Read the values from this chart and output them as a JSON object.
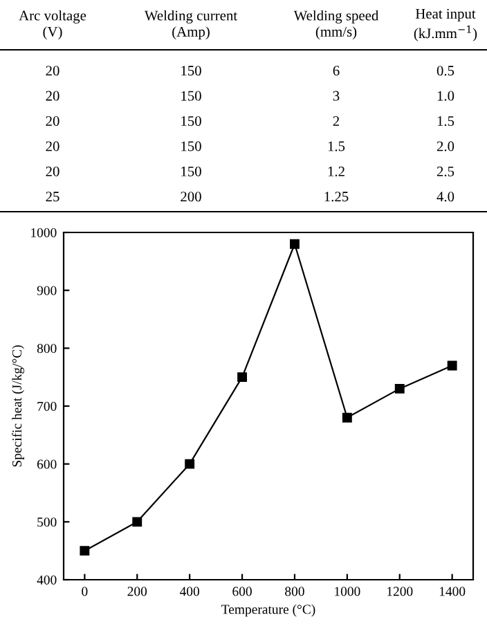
{
  "chart_data": {
    "type": "line",
    "xlabel": "Temperature (°C)",
    "ylabel": "Specific heat (J/kg/°C)",
    "annotations": [
      "Arc voltage\n(V)",
      "Welding current\n(Amp)",
      "Welding speed\n(mm/s)",
      "Heat input\n(kJ.mm$^{−1}$)",
      "20",
      "150",
      "6",
      "0.5",
      "20",
      "150",
      "3",
      "1.0",
      "20",
      "150",
      "2",
      "1.5",
      "20",
      "150",
      "1.5",
      "2.0",
      "20",
      "150",
      "1.2",
      "2.5",
      "25",
      "200",
      "1.25",
      "4.0"
    ],
    "x": [
      0,
      200,
      400,
      600,
      800,
      1000,
      1200,
      1400
    ],
    "values": [
      450,
      500,
      600,
      750,
      980,
      680,
      730,
      770
    ],
    "color": "#000000",
    "marker": "square",
    "line_style": "solid",
    "xlim": [
      -80,
      1480
    ],
    "xticks": [
      0,
      200,
      400,
      600,
      800,
      1000,
      1200,
      1400
    ],
    "ylim": [
      400,
      1000
    ],
    "yticks": [
      400,
      500,
      600,
      700,
      800,
      900,
      1000
    ],
    "grid": false
  }
}
